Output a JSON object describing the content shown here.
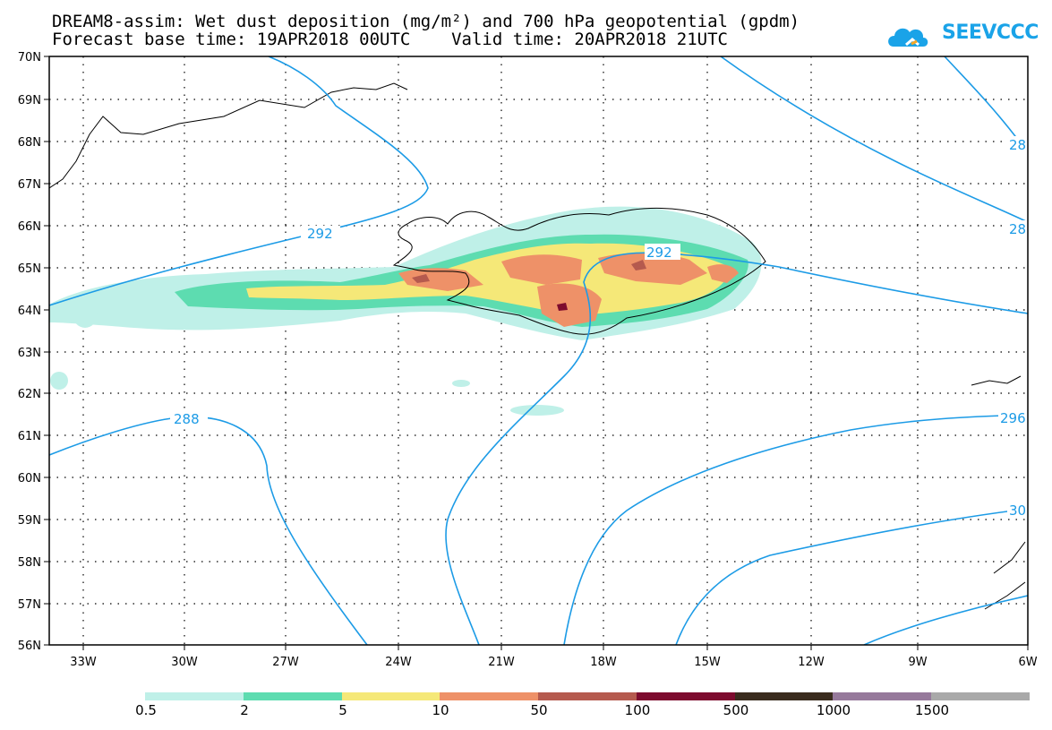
{
  "title": {
    "line1": "DREAM8-assim: Wet dust deposition (mg/m²) and 700 hPa geopotential (gpdm)",
    "line2": "Forecast base time: 19APR2018 00UTC    Valid time: 20APR2018 21UTC"
  },
  "logo": {
    "text": "SEEVCCC",
    "icon": "cloud-icon",
    "color": "#1aa3e8"
  },
  "axes": {
    "lat_labels": [
      "70N",
      "69N",
      "68N",
      "67N",
      "66N",
      "65N",
      "64N",
      "63N",
      "62N",
      "61N",
      "60N",
      "59N",
      "58N",
      "57N",
      "56N"
    ],
    "lon_labels": [
      "33W",
      "30W",
      "27W",
      "24W",
      "21W",
      "18W",
      "15W",
      "12W",
      "9W",
      "6W"
    ]
  },
  "contour_labels": [
    "292",
    "292",
    "288",
    "28",
    "28",
    "296",
    "30"
  ],
  "contour_color": "#1c9be6",
  "legend": {
    "colors": [
      "#bff0e8",
      "#5ddcb0",
      "#f5e878",
      "#ee9168",
      "#b55a4e",
      "#7d0b2e",
      "#3a2c1e",
      "#96799b",
      "#a9a9a9"
    ],
    "labels": [
      "0.5",
      "2",
      "5",
      "10",
      "50",
      "100",
      "500",
      "1000",
      "1500"
    ]
  }
}
